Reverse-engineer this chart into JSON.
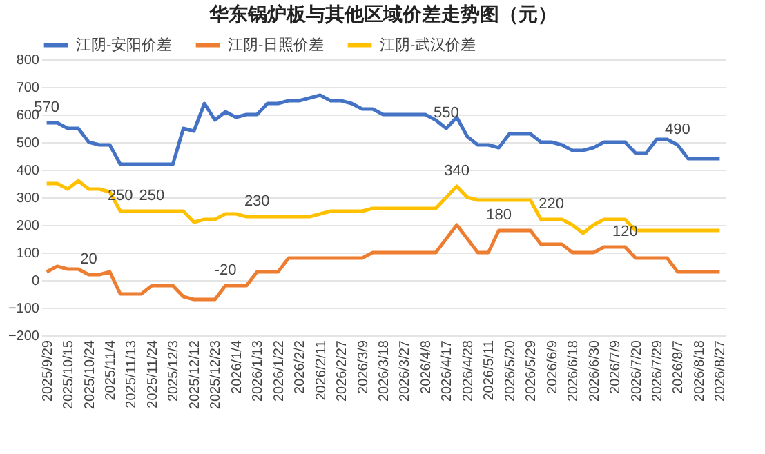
{
  "chart_data": {
    "type": "line",
    "title": "华东锅炉板与其他区域价差走势图（元）",
    "categories": [
      "2025/9/29",
      null,
      "2025/10/15",
      null,
      "2025/10/24",
      null,
      "2025/11/4",
      null,
      "2025/11/13",
      null,
      "2025/11/24",
      null,
      "2025/12/3",
      null,
      "2025/12/12",
      null,
      "2025/12/23",
      null,
      "2026/1/4",
      null,
      "2026/1/13",
      null,
      "2026/1/22",
      null,
      "2026/2/2",
      null,
      "2026/2/11",
      null,
      "2026/2/27",
      null,
      "2026/3/9",
      null,
      "2026/3/18",
      null,
      "2026/3/27",
      null,
      "2026/4/8",
      null,
      "2026/4/17",
      null,
      "2026/4/28",
      null,
      "2026/5/11",
      null,
      "2026/5/20",
      null,
      "2026/5/29",
      null,
      "2026/6/9",
      null,
      "2026/6/18",
      null,
      "2026/6/30",
      null,
      "2026/7/9",
      null,
      "2026/7/20",
      null,
      "2026/7/29",
      null,
      "2026/8/7",
      null,
      "2026/8/18",
      null,
      "2026/8/27"
    ],
    "series": [
      {
        "name": "江阴-安阳价差",
        "color": "#4472c4",
        "values": [
          570,
          570,
          550,
          550,
          500,
          490,
          490,
          420,
          420,
          420,
          420,
          420,
          420,
          550,
          540,
          640,
          580,
          610,
          590,
          600,
          600,
          640,
          640,
          650,
          650,
          660,
          670,
          650,
          650,
          640,
          620,
          620,
          600,
          600,
          600,
          600,
          600,
          580,
          550,
          590,
          520,
          490,
          490,
          480,
          530,
          530,
          530,
          500,
          500,
          490,
          470,
          470,
          480,
          500,
          500,
          500,
          460,
          460,
          510,
          510,
          490,
          440,
          440,
          440,
          440
        ],
        "value_labels": [
          "570",
          null,
          null,
          null,
          null,
          null,
          null,
          null,
          null,
          null,
          null,
          null,
          null,
          null,
          null,
          null,
          null,
          null,
          null,
          null,
          null,
          null,
          null,
          null,
          null,
          null,
          null,
          null,
          null,
          null,
          null,
          null,
          null,
          null,
          null,
          null,
          null,
          null,
          "550",
          null,
          null,
          null,
          null,
          null,
          null,
          null,
          null,
          null,
          null,
          null,
          null,
          null,
          null,
          null,
          null,
          null,
          null,
          null,
          null,
          null,
          "490",
          null,
          null,
          null,
          null
        ]
      },
      {
        "name": "江阴-日照价差",
        "color": "#ed7d31",
        "values": [
          30,
          50,
          40,
          40,
          20,
          20,
          30,
          -50,
          -50,
          -50,
          -20,
          -20,
          -20,
          -60,
          -70,
          -70,
          -70,
          -20,
          -20,
          -20,
          30,
          30,
          30,
          80,
          80,
          80,
          80,
          80,
          80,
          80,
          80,
          100,
          100,
          100,
          100,
          100,
          100,
          100,
          150,
          200,
          150,
          100,
          100,
          180,
          180,
          180,
          180,
          130,
          130,
          130,
          100,
          100,
          100,
          120,
          120,
          120,
          80,
          80,
          80,
          80,
          30,
          30,
          30,
          30,
          30
        ],
        "value_labels": [
          null,
          null,
          null,
          null,
          "20",
          null,
          null,
          null,
          null,
          null,
          null,
          null,
          null,
          null,
          null,
          null,
          null,
          "-20",
          null,
          null,
          null,
          null,
          null,
          null,
          null,
          null,
          null,
          null,
          null,
          null,
          null,
          null,
          null,
          null,
          null,
          null,
          null,
          null,
          null,
          null,
          null,
          null,
          null,
          "180",
          null,
          null,
          null,
          null,
          null,
          null,
          null,
          null,
          null,
          null,
          null,
          "120",
          null,
          null,
          null,
          null,
          null,
          null,
          null,
          null,
          null
        ]
      },
      {
        "name": "江阴-武汉价差",
        "color": "#ffc000",
        "values": [
          350,
          350,
          330,
          360,
          330,
          330,
          320,
          250,
          250,
          250,
          250,
          250,
          250,
          250,
          210,
          220,
          220,
          240,
          240,
          230,
          230,
          230,
          230,
          230,
          230,
          230,
          240,
          250,
          250,
          250,
          250,
          260,
          260,
          260,
          260,
          260,
          260,
          260,
          300,
          340,
          300,
          290,
          290,
          290,
          290,
          290,
          290,
          220,
          220,
          220,
          200,
          170,
          200,
          220,
          220,
          220,
          180,
          180,
          180,
          180,
          180,
          180,
          180,
          180,
          180
        ],
        "value_labels": [
          null,
          null,
          null,
          null,
          null,
          null,
          null,
          "250",
          null,
          null,
          "250",
          null,
          null,
          null,
          null,
          null,
          null,
          null,
          null,
          null,
          "230",
          null,
          null,
          null,
          null,
          null,
          null,
          null,
          null,
          null,
          null,
          null,
          null,
          null,
          null,
          null,
          null,
          null,
          null,
          "340",
          null,
          null,
          null,
          null,
          null,
          null,
          null,
          null,
          "220",
          null,
          null,
          null,
          null,
          null,
          null,
          null,
          null,
          null,
          null,
          null,
          null,
          null,
          null,
          null,
          null
        ]
      }
    ],
    "ylim": [
      -200,
      800
    ],
    "yticks": [
      -200,
      -100,
      0,
      100,
      200,
      300,
      400,
      500,
      600,
      700,
      800
    ],
    "grid": "y",
    "legend": "top",
    "marker": "none",
    "line_style": "solid"
  }
}
